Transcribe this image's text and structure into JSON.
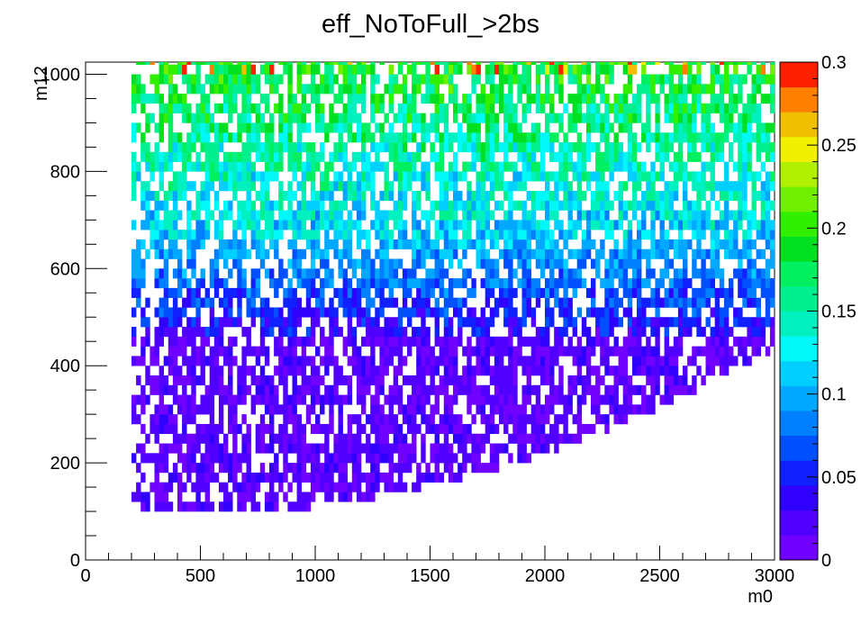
{
  "chart_data": {
    "type": "heatmap",
    "title": "eff_NoToFull_>2bs",
    "xlabel": "m0",
    "ylabel": "m12",
    "xlim": [
      0,
      3000
    ],
    "ylim": [
      0,
      1025
    ],
    "x_ticks": [
      "0",
      "500",
      "1000",
      "1500",
      "2000",
      "2500",
      "3000"
    ],
    "y_ticks": [
      "0",
      "200",
      "400",
      "600",
      "800",
      "1000"
    ],
    "colorbar": {
      "range": [
        0,
        0.3
      ],
      "ticks": [
        "0",
        "0.05",
        "0.1",
        "0.15",
        "0.2",
        "0.25",
        "0.3"
      ],
      "levels": 20,
      "colors": [
        "#7000ff",
        "#5000ff",
        "#3000ff",
        "#1020ff",
        "#0050ff",
        "#0080ff",
        "#00a8ff",
        "#00d0ff",
        "#00f8f8",
        "#00f0c0",
        "#00f090",
        "#00f060",
        "#00e020",
        "#30f000",
        "#70f000",
        "#b0f000",
        "#f0f000",
        "#f0c000",
        "#ff8000",
        "#ff2000"
      ]
    },
    "grid": false,
    "description_of_data": "Bins span m0 ~210-3000; lower m12 edge rises from ~100 at low m0 to ~450 at m0 3000. Efficiency ~0-0.03 for m12<450, ~0.05-0.1 for m12 450-650, ~0.12-0.2 for m12 650-1025 with occasional 0.25-0.3 bins at the top row; white cells are empty bins."
  }
}
